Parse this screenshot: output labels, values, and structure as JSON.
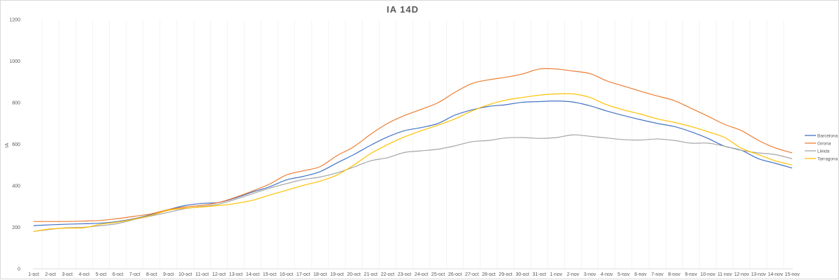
{
  "chart_data": {
    "type": "line",
    "title": "IA 14D",
    "xlabel": "",
    "ylabel": "IA",
    "ylim": [
      0,
      1200
    ],
    "yticks": [
      0,
      200,
      400,
      600,
      800,
      1000,
      1200
    ],
    "grid": "vertical",
    "legend": "right",
    "categories": [
      "1-oct",
      "2-oct",
      "3-oct",
      "4-oct",
      "5-oct",
      "6-oct",
      "7-oct",
      "8-oct",
      "9-oct",
      "10-oct",
      "11-oct",
      "12-oct",
      "13-oct",
      "14-oct",
      "15-oct",
      "16-oct",
      "17-oct",
      "18-oct",
      "19-oct",
      "20-oct",
      "21-oct",
      "22-oct",
      "23-oct",
      "24-oct",
      "25-oct",
      "26-oct",
      "27-oct",
      "28-oct",
      "29-oct",
      "30-oct",
      "31-oct",
      "1-nov",
      "2-nov",
      "3-nov",
      "4-nov",
      "5-nov",
      "6-nov",
      "7-nov",
      "8-nov",
      "9-nov",
      "10-nov",
      "11-nov",
      "12-nov",
      "13-nov",
      "14-nov",
      "15-nov"
    ],
    "series": [
      {
        "name": "Barcelona",
        "color": "#4472C4",
        "values": [
          208,
          212,
          215,
          217,
          220,
          228,
          242,
          262,
          285,
          305,
          315,
          320,
          342,
          370,
          395,
          428,
          445,
          468,
          510,
          550,
          595,
          635,
          665,
          680,
          700,
          740,
          765,
          782,
          790,
          802,
          805,
          808,
          803,
          785,
          760,
          738,
          718,
          700,
          685,
          660,
          628,
          590,
          570,
          530,
          508,
          485
        ]
      },
      {
        "name": "Girona",
        "color": "#ED7D31",
        "values": [
          228,
          228,
          228,
          230,
          233,
          242,
          253,
          265,
          285,
          298,
          306,
          320,
          345,
          375,
          408,
          452,
          472,
          492,
          545,
          588,
          648,
          700,
          738,
          768,
          800,
          850,
          892,
          910,
          922,
          938,
          962,
          962,
          952,
          940,
          905,
          880,
          855,
          832,
          810,
          773,
          735,
          695,
          665,
          618,
          582,
          558
        ]
      },
      {
        "name": "Lleida",
        "color": "#A5A5A5",
        "values": [
          180,
          190,
          198,
          200,
          208,
          218,
          238,
          255,
          272,
          290,
          300,
          312,
          335,
          362,
          388,
          410,
          430,
          442,
          462,
          490,
          520,
          535,
          560,
          568,
          576,
          592,
          612,
          618,
          630,
          632,
          628,
          632,
          645,
          638,
          630,
          622,
          620,
          625,
          618,
          605,
          605,
          590,
          570,
          558,
          550,
          530
        ]
      },
      {
        "name": "Tarragona",
        "color": "#FFC000",
        "values": [
          180,
          192,
          196,
          198,
          215,
          225,
          240,
          258,
          282,
          292,
          298,
          305,
          315,
          330,
          355,
          378,
          402,
          422,
          452,
          500,
          555,
          598,
          635,
          665,
          692,
          722,
          760,
          790,
          812,
          825,
          836,
          842,
          842,
          825,
          790,
          765,
          745,
          722,
          705,
          685,
          660,
          632,
          580,
          550,
          520,
          500
        ]
      }
    ]
  }
}
